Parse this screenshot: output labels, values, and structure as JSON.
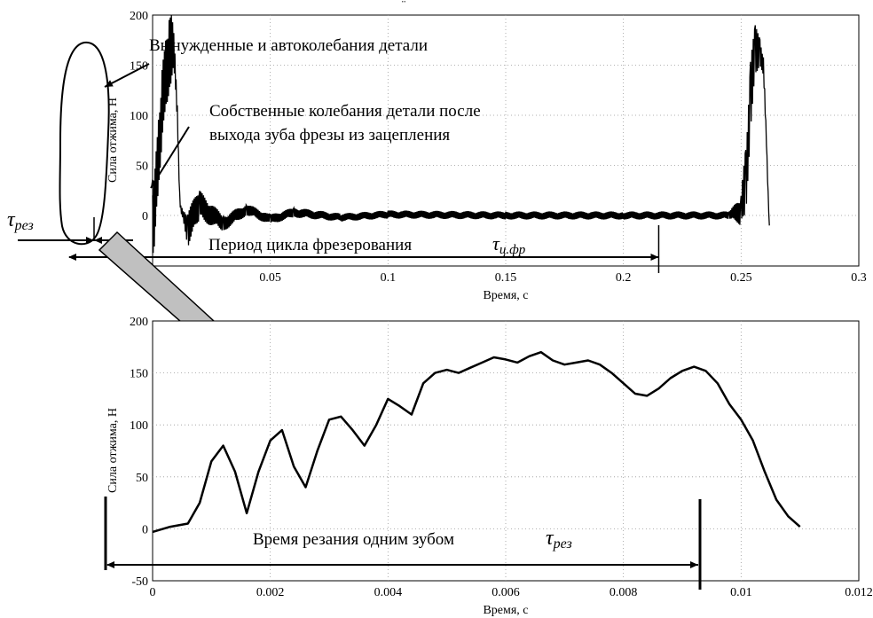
{
  "chart_data": [
    {
      "type": "line",
      "title": "",
      "xlabel": "Время, с",
      "ylabel": "Сила отжима, Н",
      "xlim": [
        0,
        0.3
      ],
      "ylim": [
        0,
        200
      ],
      "x_ticks": [
        "0.05",
        "0.1",
        "0.15",
        "0.2",
        "0.25",
        "0.3"
      ],
      "y_ticks": [
        "0",
        "50",
        "100",
        "150",
        "200"
      ],
      "grid": true,
      "series": [
        {
          "x": [
            0,
            0.001,
            0.002,
            0.003,
            0.004,
            0.005,
            0.006,
            0.007,
            0.008,
            0.009,
            0.0095,
            0.0105,
            0.011,
            0.0115,
            0.012,
            0.013,
            0.015,
            0.02,
            0.03,
            0.04,
            0.05,
            0.06,
            0.08,
            0.1,
            0.15,
            0.2,
            0.245,
            0.25,
            0.252,
            0.254,
            0.256,
            0.258,
            0.2595,
            0.2605,
            0.2615,
            0.262
          ],
          "y": [
            0,
            10,
            40,
            80,
            110,
            125,
            150,
            162,
            160,
            168,
            150,
            100,
            60,
            20,
            5,
            0,
            -12,
            10,
            -8,
            6,
            -4,
            3,
            -2,
            1,
            0,
            0,
            0,
            5,
            40,
            120,
            160,
            165,
            150,
            90,
            20,
            -10
          ],
          "oscillation_amplitude": [
            40,
            40,
            40,
            40,
            40,
            40,
            40,
            40,
            40,
            20,
            15,
            10,
            5,
            5,
            5,
            5,
            20,
            15,
            8,
            6,
            5,
            5,
            4,
            4,
            4,
            4,
            4,
            15,
            40,
            40,
            30,
            15,
            10,
            5,
            5,
            0
          ]
        }
      ],
      "annotations": [
        "Вынужденные и автоколебания детали",
        "Собственные колебания детали после",
        "выхода зуба фрезы из зацепления",
        "Период цикла фрезерования"
      ],
      "tau_cycle_end": 0.215
    },
    {
      "type": "line",
      "title": "",
      "xlabel": "Время, с",
      "ylabel": "Сила отжима, Н",
      "xlim": [
        0,
        0.012
      ],
      "ylim": [
        -50,
        200
      ],
      "x_ticks": [
        "0",
        "0.002",
        "0.004",
        "0.006",
        "0.008",
        "0.01",
        "0.012"
      ],
      "y_ticks": [
        "-50",
        "0",
        "50",
        "100",
        "150",
        "200"
      ],
      "grid": true,
      "series": [
        {
          "x": [
            0,
            0.0003,
            0.0006,
            0.0008,
            0.001,
            0.0012,
            0.0014,
            0.0016,
            0.0018,
            0.002,
            0.0022,
            0.0024,
            0.0026,
            0.0028,
            0.003,
            0.0032,
            0.0034,
            0.0036,
            0.0038,
            0.004,
            0.0042,
            0.0044,
            0.0046,
            0.0048,
            0.005,
            0.0052,
            0.0054,
            0.0056,
            0.0058,
            0.006,
            0.0062,
            0.0064,
            0.0066,
            0.0068,
            0.007,
            0.0072,
            0.0074,
            0.0076,
            0.0078,
            0.008,
            0.0082,
            0.0084,
            0.0086,
            0.0088,
            0.009,
            0.0092,
            0.0094,
            0.0096,
            0.0098,
            0.01,
            0.0102,
            0.0104,
            0.0106,
            0.0108,
            0.011
          ],
          "y": [
            -3,
            2,
            5,
            25,
            65,
            80,
            55,
            15,
            55,
            85,
            95,
            60,
            40,
            75,
            105,
            108,
            95,
            80,
            100,
            125,
            118,
            110,
            140,
            150,
            153,
            150,
            155,
            160,
            165,
            163,
            160,
            166,
            170,
            162,
            158,
            160,
            162,
            158,
            150,
            140,
            130,
            128,
            135,
            145,
            152,
            156,
            152,
            140,
            120,
            105,
            85,
            55,
            28,
            12,
            2
          ]
        }
      ],
      "annotations": [
        "Время резания одним зубом"
      ],
      "tau_cut_start": 0,
      "tau_cut_end": 0.0096
    }
  ],
  "symbols": {
    "tau": "τ",
    "cut_sub": "рез",
    "cycle_sub": "ц.фр"
  },
  "top_mark": "̈"
}
